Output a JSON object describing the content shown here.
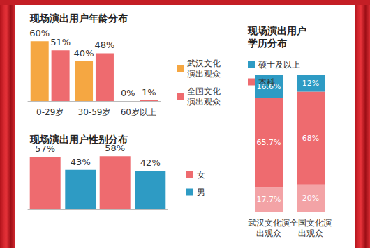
{
  "chart_data": [
    {
      "type": "bar",
      "title": "现场演出用户年龄分布",
      "categories": [
        "0-29岁",
        "30-59岁",
        "60岁以上"
      ],
      "series": [
        {
          "name": "武汉文化演出观众",
          "color": "#f5a742",
          "values": [
            60,
            40,
            0
          ],
          "value_labels": [
            "60%",
            "40%",
            "0%"
          ]
        },
        {
          "name": "全国文化演出观众",
          "color": "#ee6b6f",
          "values": [
            51,
            48,
            1
          ],
          "value_labels": [
            "51%",
            "48%",
            "1%"
          ]
        }
      ],
      "ylim": [
        0,
        70
      ],
      "data_labels": true,
      "tick_labels": "x",
      "legend": "right",
      "grid": false
    },
    {
      "type": "bar",
      "title": "现场演出用户性别分布",
      "categories": [
        null,
        null
      ],
      "series": [
        {
          "name": "女",
          "color": "#ee6b6f",
          "values": [
            57,
            58
          ],
          "value_labels": [
            "57%",
            "58%"
          ]
        },
        {
          "name": "男",
          "color": "#2e9bc4",
          "values": [
            43,
            42
          ],
          "value_labels": [
            "43%",
            "42%"
          ]
        }
      ],
      "ylim": [
        0,
        65
      ],
      "data_labels": true,
      "tick_labels": false,
      "legend": "right",
      "grid": false
    },
    {
      "type": "bar",
      "title": "现场演出用户学历分布",
      "categories": [
        "武汉文化演出观众",
        "全国文化演出观众"
      ],
      "series": [
        {
          "color": "#f3a3a6",
          "values": [
            17.7,
            20
          ],
          "value_labels": [
            "17.7%",
            "20%"
          ]
        },
        {
          "name": "本科",
          "color": "#ee6b6f",
          "values": [
            65.7,
            68
          ],
          "value_labels": [
            "65.7%",
            "68%"
          ]
        },
        {
          "name": "硕士及以上",
          "color": "#2e9bc4",
          "values": [
            16.6,
            12
          ],
          "value_labels": [
            "16.6%",
            "12%"
          ]
        }
      ],
      "ylim": [
        0,
        100
      ],
      "stacked": true,
      "data_labels": true,
      "tick_labels": "x",
      "legend": "top",
      "grid": false
    }
  ]
}
